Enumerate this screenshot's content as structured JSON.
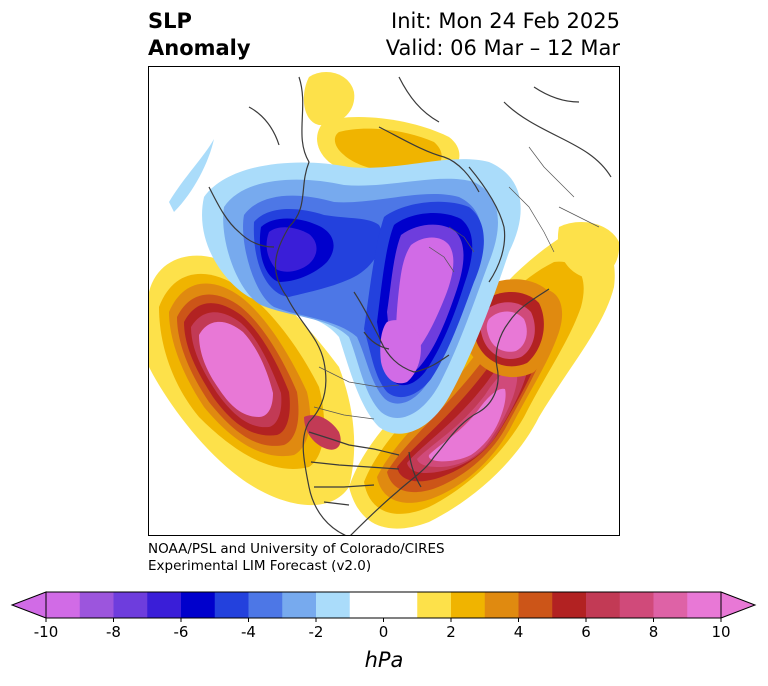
{
  "title": {
    "left_line1": "SLP",
    "left_line2": "Anomaly",
    "right_line1": "Init: Mon 24 Feb 2025",
    "right_line2": "Valid: 06 Mar – 12 Mar"
  },
  "credit": {
    "line1": "NOAA/PSL and University of Colorado/CIRES",
    "line2": "Experimental LIM Forecast (v2.0)"
  },
  "colorbar": {
    "units": "hPa",
    "ticks": [
      "-10",
      "-8",
      "-6",
      "-4",
      "-2",
      "0",
      "2",
      "4",
      "6",
      "8",
      "10"
    ],
    "levels": [
      -10,
      -9,
      -8,
      -7,
      -6,
      -5,
      -4,
      -3,
      -2,
      -1,
      1,
      2,
      3,
      4,
      5,
      6,
      7,
      8,
      9,
      10
    ],
    "colors": [
      "#d16be6",
      "#9c55dd",
      "#6e3ddd",
      "#3a1ed8",
      "#0000cc",
      "#2341dd",
      "#4d77e6",
      "#77aaee",
      "#aadcfa",
      "#ffffff",
      "#fde14a",
      "#f0b400",
      "#e08a10",
      "#cc5518",
      "#b22222",
      "#c23a55",
      "#d04a7a",
      "#de62a6",
      "#e878d6"
    ],
    "extend_low_color": "#d16be6",
    "extend_high_color": "#e878d6"
  }
}
